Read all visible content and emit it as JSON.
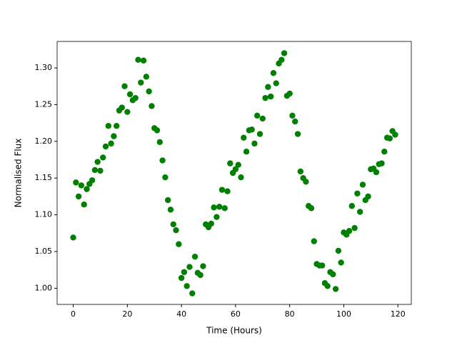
{
  "chart_data": {
    "type": "scatter",
    "xlabel": "Time (Hours)",
    "ylabel": "Normalised Flux",
    "color": "#008000",
    "x": [
      0,
      1,
      2,
      3,
      4,
      5,
      6,
      7,
      8,
      9,
      10,
      11,
      12,
      13,
      14,
      15,
      16,
      17,
      18,
      19,
      20,
      21,
      22,
      23,
      24,
      25,
      26,
      27,
      28,
      29,
      30,
      31,
      32,
      33,
      34,
      35,
      36,
      37,
      38,
      39,
      40,
      41,
      42,
      43,
      44,
      45,
      46,
      47,
      48,
      49,
      50,
      51,
      52,
      53,
      54,
      55,
      56,
      57,
      58,
      59,
      60,
      61,
      62,
      63,
      64,
      65,
      66,
      67,
      68,
      69,
      70,
      71,
      72,
      73,
      74,
      75,
      76,
      77,
      78,
      79,
      80,
      81,
      82,
      83,
      84,
      85,
      86,
      87,
      88,
      89,
      90,
      91,
      92,
      93,
      94,
      95,
      96,
      97,
      98,
      99,
      100,
      101,
      102,
      103,
      104,
      105,
      106,
      107,
      108,
      109,
      110,
      111,
      112,
      113,
      114,
      115,
      116,
      117,
      118,
      119
    ],
    "values": [
      1.069,
      1.144,
      1.125,
      1.14,
      1.114,
      1.135,
      1.142,
      1.147,
      1.161,
      1.172,
      1.16,
      1.178,
      1.193,
      1.221,
      1.197,
      1.207,
      1.221,
      1.242,
      1.246,
      1.275,
      1.24,
      1.264,
      1.256,
      1.259,
      1.311,
      1.28,
      1.31,
      1.288,
      1.268,
      1.248,
      1.218,
      1.215,
      1.199,
      1.174,
      1.151,
      1.12,
      1.107,
      1.087,
      1.079,
      1.06,
      1.014,
      1.022,
      1.003,
      1.029,
      0.993,
      1.043,
      1.021,
      1.018,
      1.03,
      1.087,
      1.083,
      1.088,
      1.11,
      1.097,
      1.111,
      1.134,
      1.109,
      1.132,
      1.17,
      1.157,
      1.162,
      1.168,
      1.151,
      1.205,
      1.186,
      1.215,
      1.216,
      1.197,
      1.235,
      1.21,
      1.231,
      1.259,
      1.274,
      1.261,
      1.293,
      1.279,
      1.306,
      1.311,
      1.32,
      1.262,
      1.265,
      1.235,
      1.227,
      1.21,
      1.159,
      1.15,
      1.145,
      1.112,
      1.109,
      1.064,
      1.033,
      1.031,
      1.031,
      1.007,
      1.003,
      1.022,
      1.019,
      0.999,
      1.051,
      1.035,
      1.076,
      1.073,
      1.078,
      1.112,
      1.082,
      1.129,
      1.104,
      1.141,
      1.12,
      1.125,
      1.162,
      1.163,
      1.158,
      1.169,
      1.17,
      1.186,
      1.205,
      1.204,
      1.214,
      1.209
    ],
    "xlim": [
      -5.95,
      124.95
    ],
    "ylim": [
      0.978,
      1.336
    ],
    "xticks": [
      0,
      20,
      40,
      60,
      80,
      100,
      120
    ],
    "yticks": [
      {
        "value": 1.0,
        "label": "1.00"
      },
      {
        "value": 1.05,
        "label": "1.05"
      },
      {
        "value": 1.1,
        "label": "1.10"
      },
      {
        "value": 1.15,
        "label": "1.15"
      },
      {
        "value": 1.2,
        "label": "1.20"
      },
      {
        "value": 1.25,
        "label": "1.25"
      },
      {
        "value": 1.3,
        "label": "1.30"
      }
    ],
    "grid": false
  }
}
